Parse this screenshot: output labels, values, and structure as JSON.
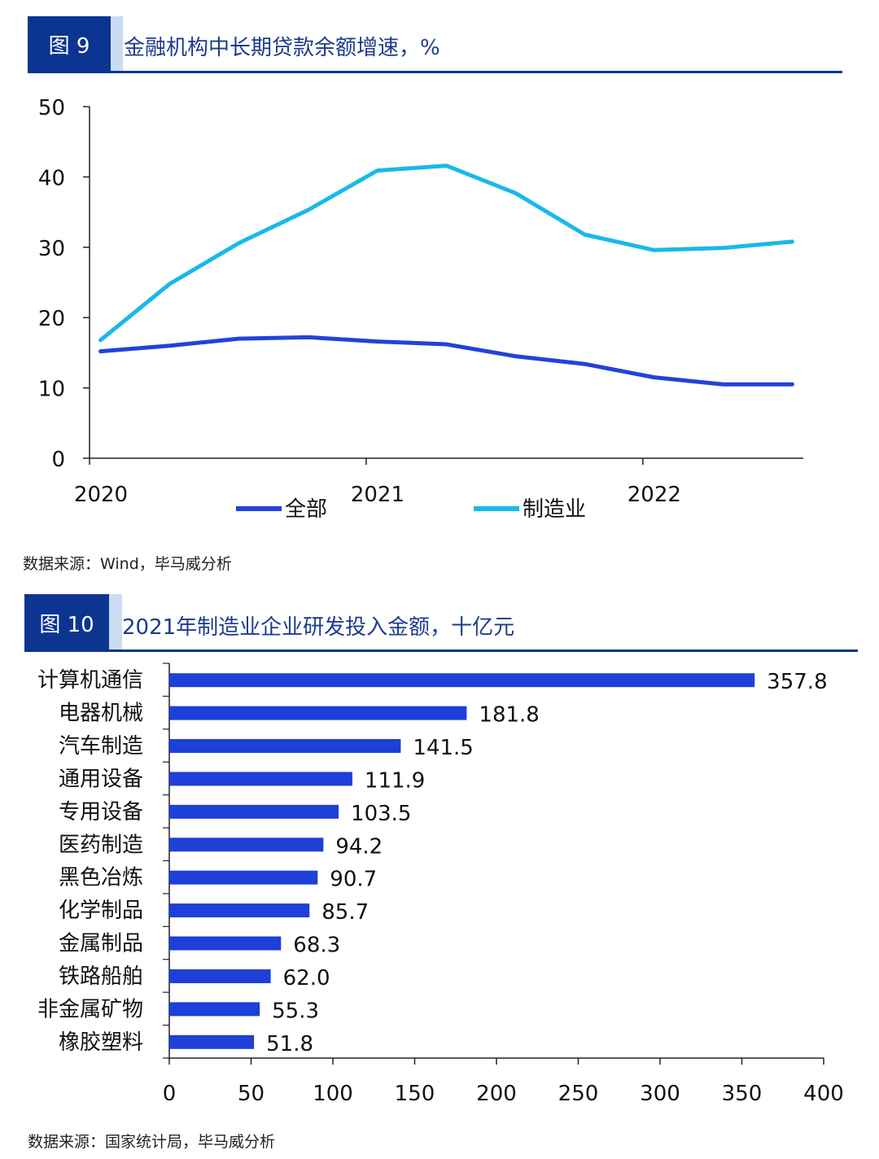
{
  "figure9": {
    "label": "图 9",
    "title": "金融机构中长期贷款余额增速，%",
    "source": "数据来源：Wind，毕马威分析"
  },
  "figure10": {
    "label": "图 10",
    "title": "2021年制造业企业研发投入金额，十亿元",
    "source": "数据来源：国家统计局，毕马威分析"
  },
  "colors": {
    "header": "#0b3591",
    "all": "#2342d9",
    "manufacturing": "#18b9ea",
    "bar": "#1e3fd8"
  },
  "chart_data": [
    {
      "type": "line",
      "title": "金融机构中长期贷款余额增速，%",
      "ylim": [
        0,
        50
      ],
      "yticks": [
        0,
        10,
        20,
        30,
        40,
        50
      ],
      "xlim": [
        2020,
        2022.58
      ],
      "xticks": [
        2020,
        2021,
        2022
      ],
      "xtick_labels": [
        "2020",
        "2021",
        "2022"
      ],
      "grid": false,
      "legend": "bottom",
      "x": [
        2020.04,
        2020.29,
        2020.54,
        2020.79,
        2021.04,
        2021.29,
        2021.54,
        2021.79,
        2022.04,
        2022.29,
        2022.54
      ],
      "series": [
        {
          "name": "全部",
          "color": "#2342d9",
          "values": [
            15.2,
            16.0,
            17.0,
            17.2,
            16.6,
            16.2,
            14.5,
            13.4,
            11.5,
            10.5,
            10.5
          ]
        },
        {
          "name": "制造业",
          "color": "#18b9ea",
          "values": [
            16.8,
            24.8,
            30.6,
            35.3,
            40.9,
            41.6,
            37.7,
            31.8,
            29.6,
            29.9,
            30.8
          ]
        }
      ]
    },
    {
      "type": "bar",
      "orientation": "horizontal",
      "title": "2021年制造业企业研发投入金额，十亿元",
      "xlim": [
        0,
        400
      ],
      "xticks": [
        0,
        50,
        100,
        150,
        200,
        250,
        300,
        350,
        400
      ],
      "categories": [
        "计算机通信",
        "电器机械",
        "汽车制造",
        "通用设备",
        "专用设备",
        "医药制造",
        "黑色冶炼",
        "化学制品",
        "金属制品",
        "铁路船舶",
        "非金属矿物",
        "橡胶塑料"
      ],
      "values": [
        357.8,
        181.8,
        141.5,
        111.9,
        103.5,
        94.2,
        90.7,
        85.7,
        68.3,
        62.0,
        55.3,
        51.8
      ],
      "value_labels": [
        "357.8",
        "181.8",
        "141.5",
        "111.9",
        "103.5",
        "94.2",
        "90.7",
        "85.7",
        "68.3",
        "62.0",
        "55.3",
        "51.8"
      ]
    }
  ]
}
